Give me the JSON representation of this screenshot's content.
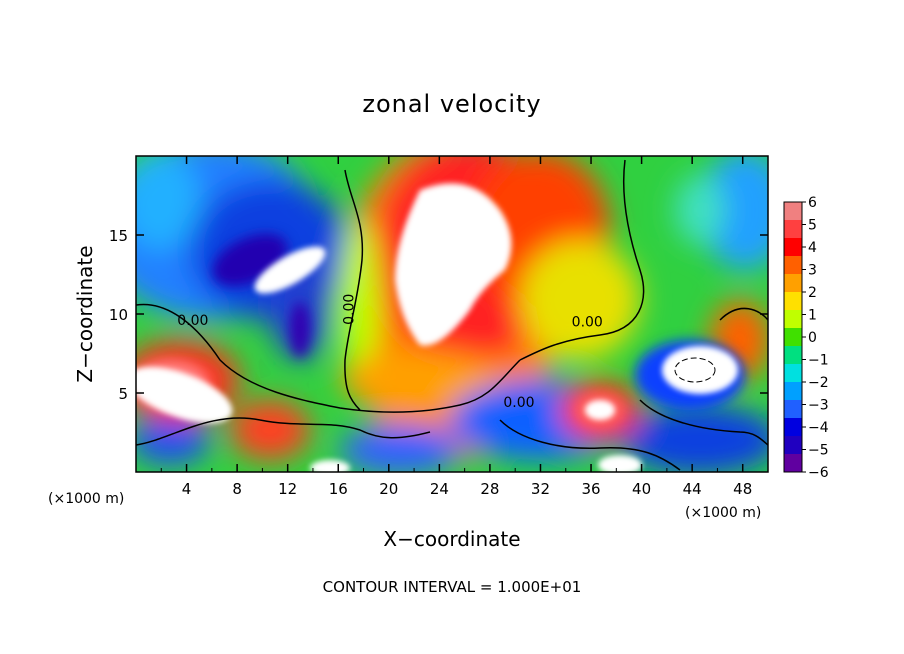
{
  "chart_data": {
    "type": "heatmap",
    "title": "zonal velocity",
    "xlabel": "X−coordinate",
    "ylabel": "Z−coordinate",
    "x_unit_left": "(×1000 m)",
    "x_unit_right": "(×1000 m)",
    "footer": "CONTOUR INTERVAL = 1.000E+01",
    "xlim": [
      0,
      50
    ],
    "ylim": [
      0,
      20
    ],
    "x_ticks": [
      4,
      8,
      12,
      16,
      20,
      24,
      28,
      32,
      36,
      40,
      44,
      48
    ],
    "y_ticks": [
      5,
      10,
      15
    ],
    "colorbar": {
      "min": -6,
      "max": 6,
      "tick_labels": [
        "6",
        "5",
        "4",
        "3",
        "2",
        "1",
        "0",
        "−1",
        "−2",
        "−3",
        "−4",
        "−5",
        "−6"
      ],
      "colors": [
        "#f08080",
        "#ff4040",
        "#ff0000",
        "#ff6000",
        "#ffa000",
        "#ffe000",
        "#c0ff00",
        "#40e000",
        "#00e080",
        "#00e0e0",
        "#00a0ff",
        "#2060ff",
        "#0000e0",
        "#2000c0",
        "#6000a0"
      ]
    },
    "contour_labels": [
      {
        "text": "0.00",
        "x": 4.5,
        "z": 9.3
      },
      {
        "text": "0.00",
        "x": 17.2,
        "z": 10.3
      },
      {
        "text": "0.00",
        "x": 35.7,
        "z": 9.2
      },
      {
        "text": "0.00",
        "x": 30.3,
        "z": 4.1
      }
    ],
    "features": [
      {
        "kind": "positive_max",
        "x": 25,
        "z": 14,
        "value": "> 6"
      },
      {
        "kind": "negative_min",
        "x": 12,
        "z": 13,
        "value": "< -6"
      },
      {
        "kind": "positive_max",
        "x": 3,
        "z": 5,
        "value": "> 6"
      },
      {
        "kind": "positive_max",
        "x": 36.5,
        "z": 4,
        "value": "> 6"
      },
      {
        "kind": "positive_max",
        "x": 45.5,
        "z": 6.5,
        "value": "> 6"
      }
    ]
  }
}
